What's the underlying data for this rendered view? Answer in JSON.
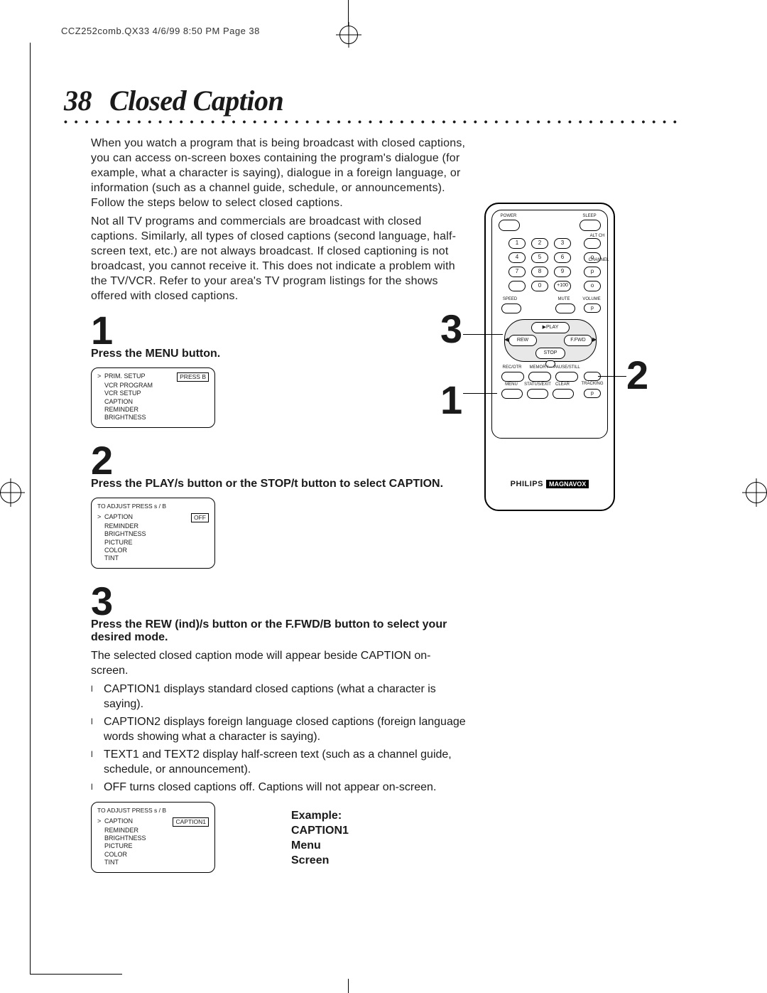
{
  "header": "CCZ252comb.QX33  4/6/99 8:50 PM  Page 38",
  "page_number": "38",
  "title": "Closed Caption",
  "intro_p1": "When you watch a program that is being broadcast with closed captions, you can access on-screen boxes containing the program's dialogue (for example, what a character is saying), dialogue in a foreign language, or information (such as a channel guide, schedule, or announcements).  Follow the steps below to select closed captions.",
  "intro_p2": "Not all TV programs and commercials are broadcast with closed captions. Similarly, all types of closed captions (second language, half-screen text, etc.) are not always broadcast. If closed captioning is not broadcast, you cannot receive it. This does not indicate a problem with the TV/VCR. Refer to your area's TV program listings for the shows offered with closed captions.",
  "step1_num": "1",
  "step1_text": "Press the MENU button.",
  "menu1": {
    "header": "",
    "rows": [
      "PRIM. SETUP",
      "VCR PROGRAM",
      "VCR SETUP",
      "CAPTION",
      "REMINDER",
      "BRIGHTNESS"
    ],
    "selected_index": 0,
    "value": "PRESS B"
  },
  "step2_num": "2",
  "step2_text": "Press the PLAY/s  button or the STOP/t  button to select CAPTION.",
  "menu2": {
    "header": "TO ADJUST PRESS s / B",
    "rows": [
      "CAPTION",
      "REMINDER",
      "BRIGHTNESS",
      "PICTURE",
      "COLOR",
      "TINT"
    ],
    "selected_index": 0,
    "value": "OFF"
  },
  "step3_num": "3",
  "step3_text": "Press the REW (ind)/s  button or the F.FWD/B  button to select your desired mode.",
  "afterstep3": "The selected closed caption mode will appear beside CAPTION on-screen.",
  "bullets": [
    "CAPTION1 displays standard closed captions (what a character is saying).",
    "CAPTION2 displays foreign language closed captions (foreign language words showing what a character is saying).",
    "TEXT1 and TEXT2 display half-screen text (such as a channel guide, schedule, or announcement).",
    "OFF turns closed captions off. Captions will not appear on-screen."
  ],
  "menu3": {
    "header": "TO ADJUST PRESS s / B",
    "rows": [
      "CAPTION",
      "REMINDER",
      "BRIGHTNESS",
      "PICTURE",
      "COLOR",
      "TINT"
    ],
    "selected_index": 0,
    "value": "CAPTION1"
  },
  "example_label": "Example:\nCAPTION1\nMenu\nScreen",
  "remote": {
    "brand": "PHILIPS",
    "brand2": "MAGNAVOX",
    "labels": {
      "power": "POWER",
      "sleep": "SLEEP",
      "altch": "ALT CH",
      "channel": "CHANNEL",
      "speed": "SPEED",
      "mute": "MUTE",
      "volume": "VOLUME",
      "play": "PLAY",
      "rew": "REW",
      "ffwd": "F.FWD",
      "stop": "STOP",
      "recotr": "REC/OTR",
      "memory": "MEMORY",
      "pausestill": "PAUSE/STILL",
      "menu": "MENU",
      "statusexit": "STATUS/EXIT",
      "clear": "CLEAR",
      "tracking": "TRACKING",
      "plus100": "+100"
    },
    "digits": [
      "1",
      "2",
      "3",
      "4",
      "5",
      "6",
      "7",
      "8",
      "9",
      "0"
    ]
  },
  "callouts": {
    "n1": "1",
    "n2": "2",
    "n3": "3"
  }
}
